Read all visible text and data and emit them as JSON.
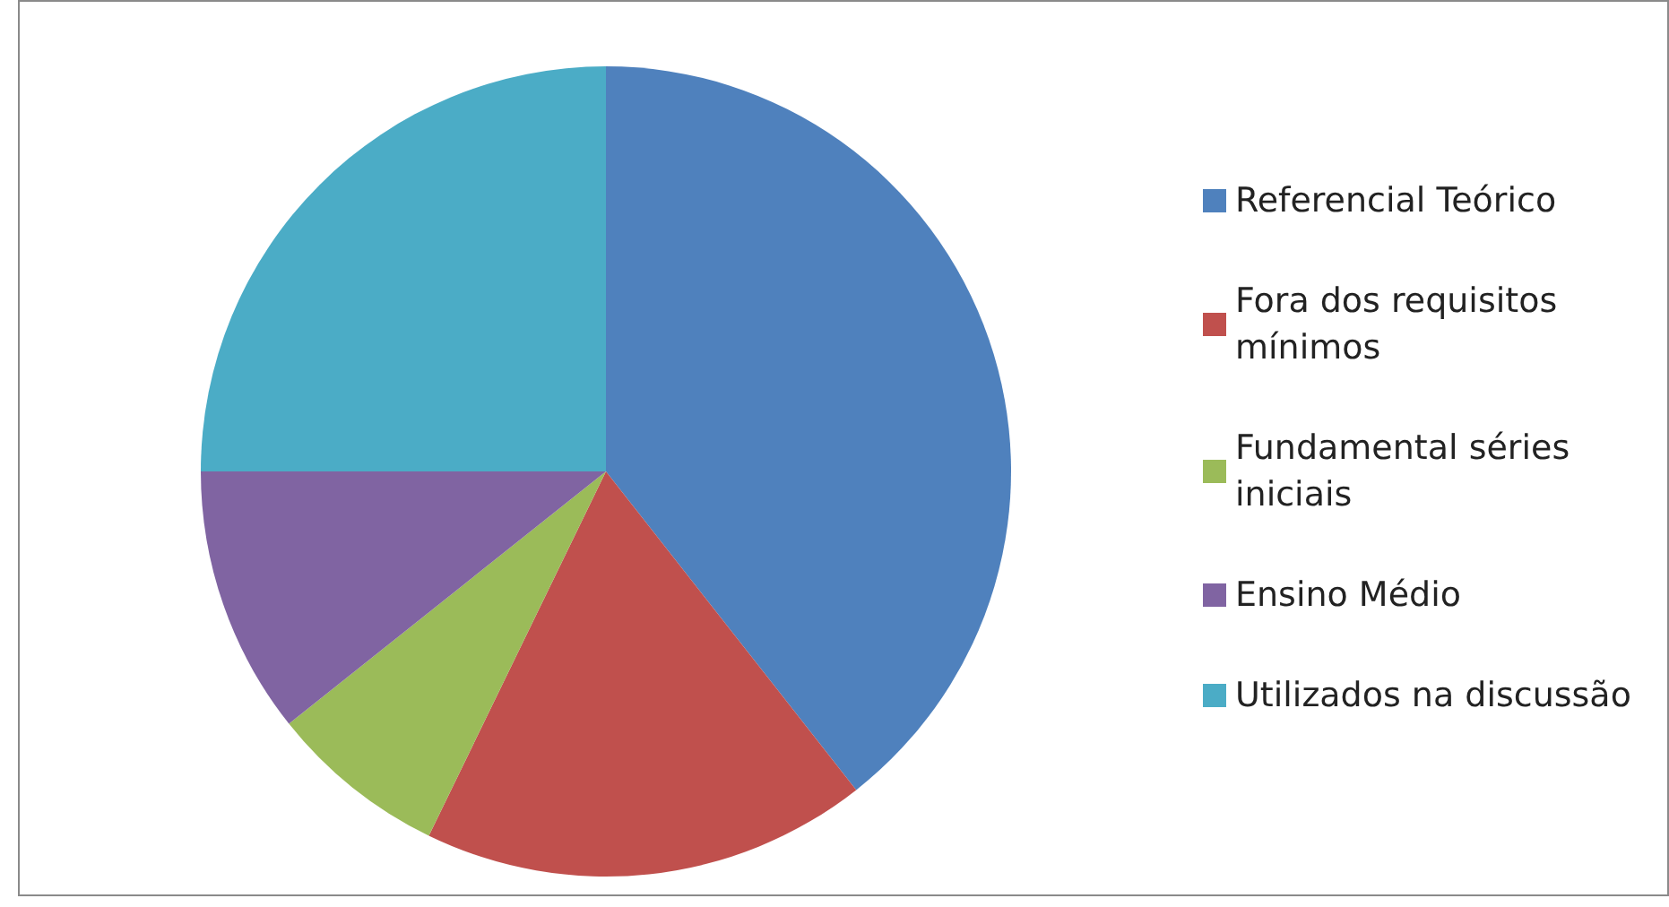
{
  "chart_data": {
    "type": "pie",
    "categories": [
      "Referencial Teórico",
      "Fora dos requisitos mínimos",
      "Fundamental séries iniciais",
      "Ensino Médio",
      "Utilizados na discussão"
    ],
    "values": [
      39.4,
      17.8,
      7.1,
      10.7,
      25.0
    ],
    "colors": [
      "#4f81bd",
      "#c0504d",
      "#9bbb59",
      "#8064a2",
      "#4bacc6"
    ],
    "legend": "right"
  }
}
